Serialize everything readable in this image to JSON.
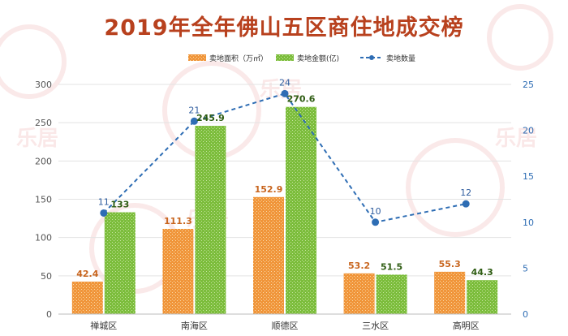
{
  "title": "2019年全年佛山五区商住地成交榜",
  "watermark": {
    "logo": "LEJU",
    "brand": "乐居"
  },
  "colors": {
    "title": "#b8411e",
    "area": "#f0953a",
    "amount": "#7cbd3c",
    "count": "#2e6db4",
    "area_label": "#c8651e",
    "amount_label": "#2e5c12",
    "count_label": "#2e5c9e",
    "axis_text": "#555555",
    "right_axis_text": "#2e6db4"
  },
  "chart_data": {
    "type": "bar",
    "categories": [
      "禅城区",
      "南海区",
      "顺德区",
      "三水区",
      "高明区"
    ],
    "series": [
      {
        "name": "卖地面积（万㎡）",
        "type": "bar",
        "axis": "left",
        "values": [
          42.4,
          111.3,
          152.9,
          53.2,
          55.3
        ]
      },
      {
        "name": "卖地金额(亿)",
        "type": "bar",
        "axis": "left",
        "values": [
          133,
          245.9,
          270.6,
          51.5,
          44.3
        ]
      },
      {
        "name": "卖地数量",
        "type": "line",
        "axis": "right",
        "values": [
          11,
          21,
          24,
          10,
          12
        ]
      }
    ],
    "left_axis": {
      "range": [
        0,
        300
      ],
      "ticks": [
        0,
        50,
        100,
        150,
        200,
        250,
        300
      ]
    },
    "right_axis": {
      "range": [
        0,
        25
      ],
      "ticks": [
        0,
        5,
        10,
        15,
        20,
        25
      ]
    },
    "grid": true,
    "legend_position": "top"
  }
}
